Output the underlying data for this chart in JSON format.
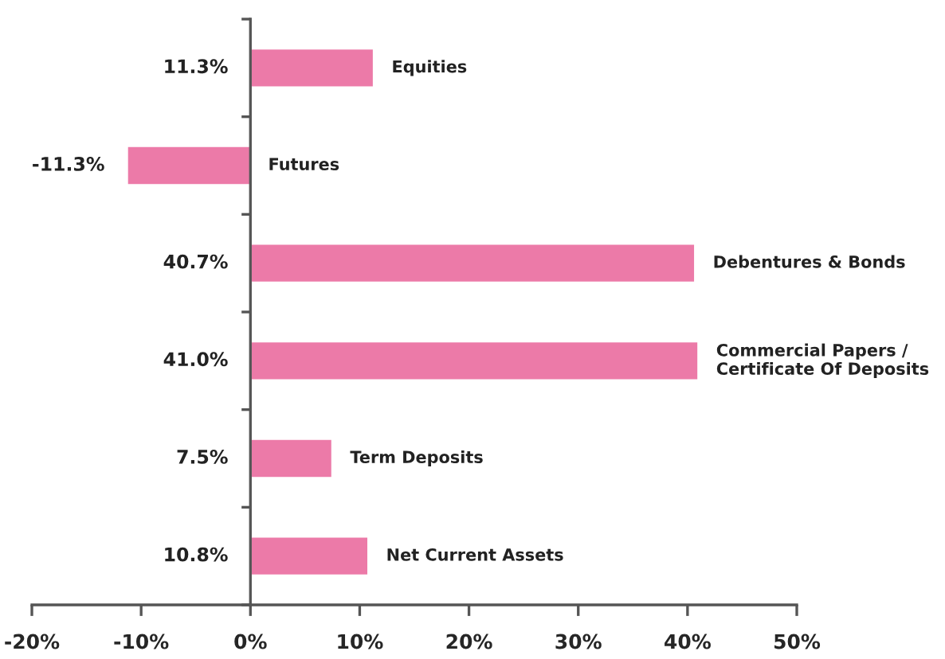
{
  "chart_data": {
    "type": "bar",
    "orientation": "horizontal",
    "categories": [
      "Equities",
      "Futures",
      "Debentures & Bonds",
      "Commercial Papers /\nCertificate Of Deposits",
      "Term Deposits",
      "Net Current Assets"
    ],
    "values": [
      11.3,
      -11.3,
      40.7,
      41.0,
      7.5,
      10.8
    ],
    "value_labels": [
      "11.3%",
      "-11.3%",
      "40.7%",
      "41.0%",
      "7.5%",
      "10.8%"
    ],
    "color": "#ec7aa8",
    "xlim": [
      -20,
      50
    ],
    "xticks": [
      {
        "value": -20,
        "label": "-20%"
      },
      {
        "value": -10,
        "label": "-10%"
      },
      {
        "value": 0,
        "label": "0%"
      },
      {
        "value": 10,
        "label": "10%"
      },
      {
        "value": 20,
        "label": "20%"
      },
      {
        "value": 30,
        "label": "30%"
      },
      {
        "value": 40,
        "label": "40%"
      },
      {
        "value": 50,
        "label": "50%"
      }
    ],
    "legend": false
  }
}
